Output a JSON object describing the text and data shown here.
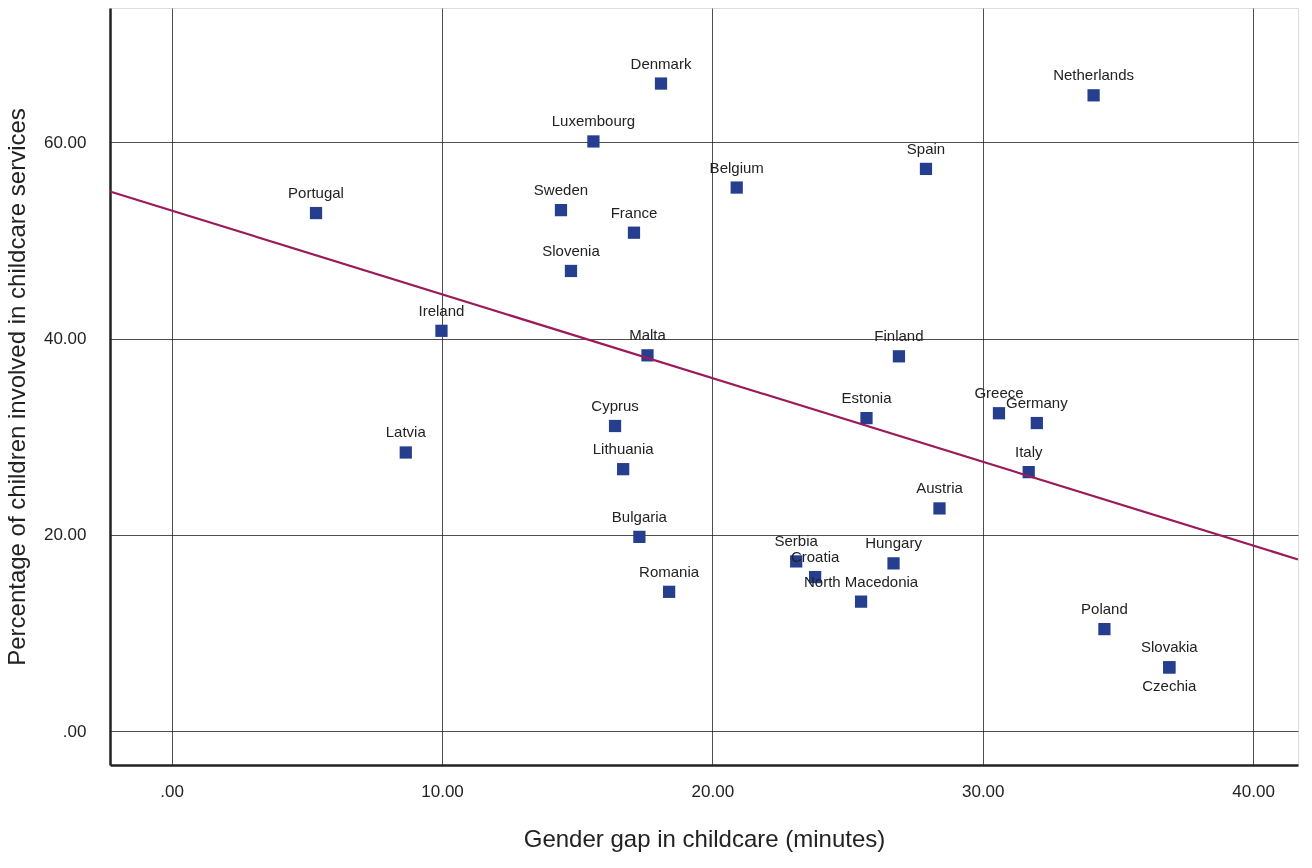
{
  "chart_data": {
    "type": "scatter",
    "xlabel": "Gender gap in childcare (minutes)",
    "ylabel": "Percentage of children involved in childcare services",
    "xlim": [
      -2.28,
      41.66
    ],
    "ylim": [
      -3.45,
      73.7
    ],
    "xticks": [
      {
        "value": 0,
        "label": ".00"
      },
      {
        "value": 10,
        "label": "10.00"
      },
      {
        "value": 20,
        "label": "20.00"
      },
      {
        "value": 30,
        "label": "30.00"
      },
      {
        "value": 40,
        "label": "40.00"
      }
    ],
    "yticks": [
      {
        "value": 0,
        "label": ".00"
      },
      {
        "value": 20,
        "label": "20.00"
      },
      {
        "value": 40,
        "label": "40.00"
      },
      {
        "value": 60,
        "label": "60.00"
      }
    ],
    "grid": true,
    "marker": "square",
    "series": [
      {
        "type": "scatter",
        "color": "#253f8e",
        "x": [
          5.34,
          9.98,
          8.66,
          15.6,
          14.4,
          14.77,
          18.1,
          17.1,
          20.9,
          17.6,
          16.4,
          16.7,
          17.3,
          18.4,
          23.1,
          23.8,
          25.5,
          26.7,
          25.7,
          26.9,
          27.9,
          28.4,
          30.6,
          32.0,
          31.7,
          34.1,
          34.5,
          36.9,
          36.9
        ],
        "values": [
          52.8,
          40.8,
          28.4,
          60.1,
          53.1,
          46.9,
          66.0,
          50.8,
          55.4,
          38.3,
          31.1,
          26.7,
          19.8,
          14.2,
          17.3,
          15.7,
          13.2,
          17.1,
          31.9,
          38.2,
          57.3,
          22.7,
          32.4,
          31.4,
          26.4,
          64.8,
          10.4,
          6.5,
          6.5
        ]
      },
      {
        "type": "line",
        "color": "#9b1b5a",
        "marker": "none",
        "line_style": "solid",
        "x": [
          -2.28,
          41.66
        ],
        "values": [
          55.0,
          17.5
        ]
      }
    ],
    "annotations": [
      {
        "text": "Portugal",
        "x": 5.34,
        "y": 52.8
      },
      {
        "text": "Ireland",
        "x": 9.98,
        "y": 40.8
      },
      {
        "text": "Latvia",
        "x": 8.66,
        "y": 28.4
      },
      {
        "text": "Luxembourg",
        "x": 15.6,
        "y": 60.1
      },
      {
        "text": "Sweden",
        "x": 14.4,
        "y": 53.1
      },
      {
        "text": "Slovenia",
        "x": 14.77,
        "y": 46.9
      },
      {
        "text": "Denmark",
        "x": 18.1,
        "y": 66.0
      },
      {
        "text": "France",
        "x": 17.1,
        "y": 50.8
      },
      {
        "text": "Belgium",
        "x": 20.9,
        "y": 55.4
      },
      {
        "text": "Malta",
        "x": 17.6,
        "y": 38.3
      },
      {
        "text": "Cyprus",
        "x": 16.4,
        "y": 31.1
      },
      {
        "text": "Lithuania",
        "x": 16.7,
        "y": 26.7
      },
      {
        "text": "Bulgaria",
        "x": 17.3,
        "y": 19.8
      },
      {
        "text": "Romania",
        "x": 18.4,
        "y": 14.2
      },
      {
        "text": "Serbia",
        "x": 23.1,
        "y": 17.3
      },
      {
        "text": "Croatia",
        "x": 23.8,
        "y": 15.7
      },
      {
        "text": "North Macedonia",
        "x": 25.5,
        "y": 13.2
      },
      {
        "text": "Hungary",
        "x": 26.7,
        "y": 17.1
      },
      {
        "text": "Estonia",
        "x": 25.7,
        "y": 31.9
      },
      {
        "text": "Finland",
        "x": 26.9,
        "y": 38.2
      },
      {
        "text": "Spain",
        "x": 27.9,
        "y": 57.3
      },
      {
        "text": "Austria",
        "x": 28.4,
        "y": 22.7
      },
      {
        "text": "Greece",
        "x": 30.6,
        "y": 32.4
      },
      {
        "text": "Germany",
        "x": 32.0,
        "y": 31.4
      },
      {
        "text": "Italy",
        "x": 31.7,
        "y": 26.4
      },
      {
        "text": "Netherlands",
        "x": 34.1,
        "y": 64.8
      },
      {
        "text": "Poland",
        "x": 34.5,
        "y": 10.4
      },
      {
        "text": "Slovakia",
        "x": 36.9,
        "y": 6.5
      },
      {
        "text": "Czechia",
        "x": 36.9,
        "y": 6.5
      }
    ]
  }
}
